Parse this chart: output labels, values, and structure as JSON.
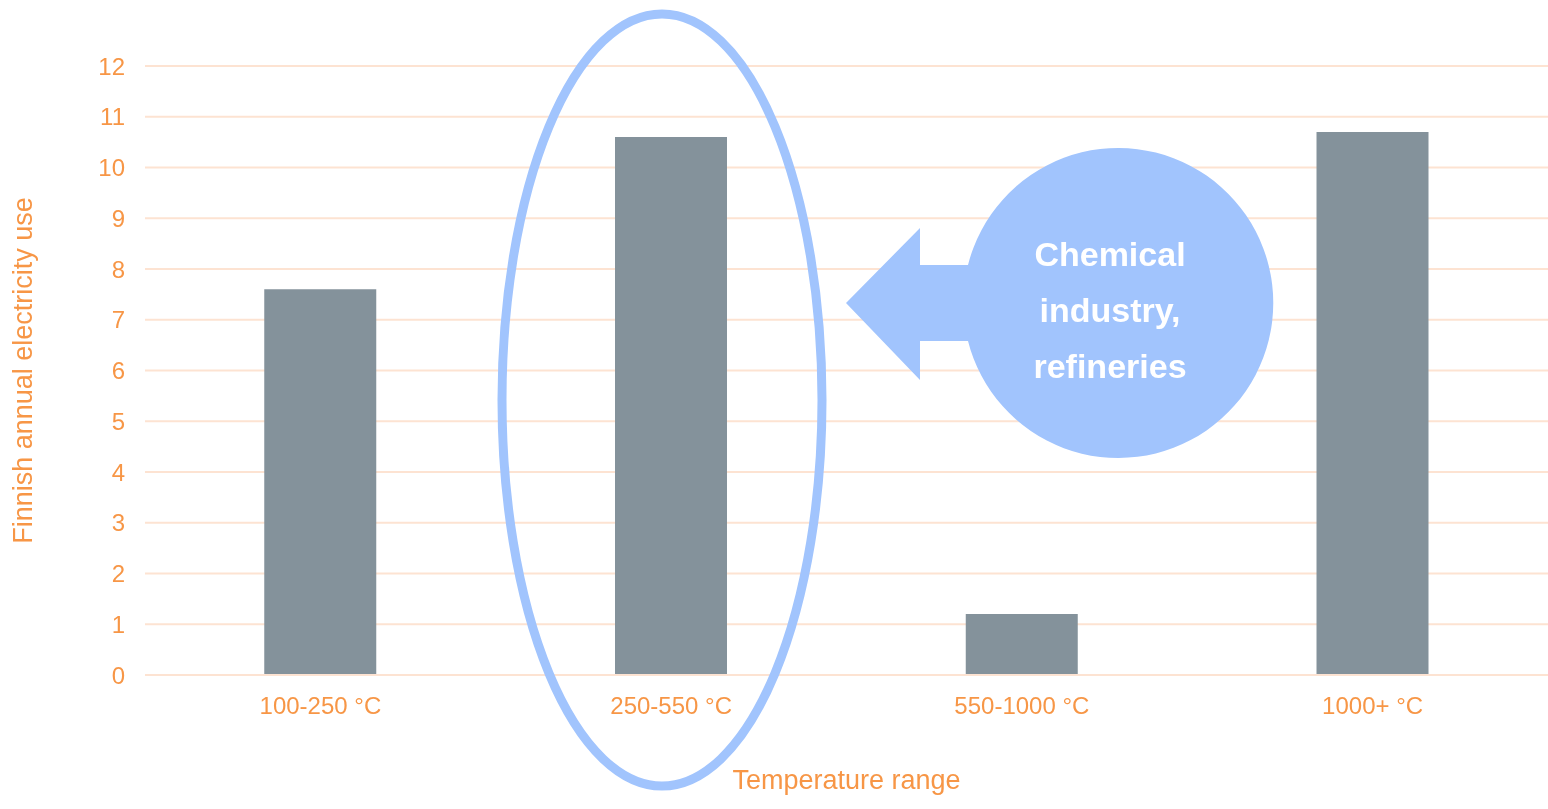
{
  "chart_data": {
    "type": "bar",
    "xlabel": "Temperature range",
    "ylabel": "Finnish annual electricity use",
    "categories": [
      "100-250 °C",
      "250-550 °C",
      "550-1000 °C",
      "1000+ °C"
    ],
    "values": [
      7.6,
      10.6,
      1.2,
      10.7
    ],
    "color": "#84929b",
    "ylim": [
      0,
      12
    ],
    "yticks": [
      0,
      1,
      2,
      3,
      4,
      5,
      6,
      7,
      8,
      9,
      10,
      11,
      12
    ],
    "grid": "y",
    "annotations": [
      "Chemical industry, refineries"
    ]
  }
}
